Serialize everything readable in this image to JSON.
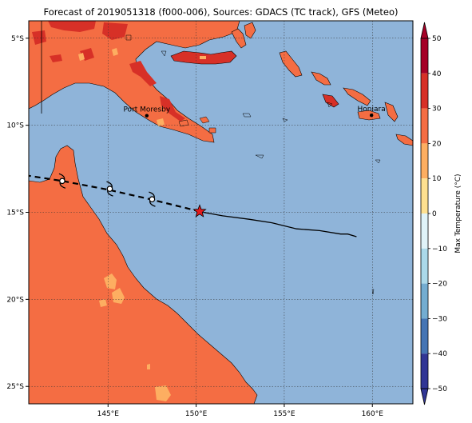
{
  "title": "Forecast of 2019051318 (f000-006), Sources: GDACS (TC track), GFS (Meteo)",
  "map": {
    "lon_range": [
      140.5,
      162.3
    ],
    "lat_range": [
      -26.0,
      -4.0
    ],
    "lon_ticks": [
      {
        "value": 145,
        "label": "145°E"
      },
      {
        "value": 150,
        "label": "150°E"
      },
      {
        "value": 155,
        "label": "155°E"
      },
      {
        "value": 160,
        "label": "160°E"
      }
    ],
    "lat_ticks": [
      {
        "value": -5,
        "label": "5°S"
      },
      {
        "value": -10,
        "label": "10°S"
      },
      {
        "value": -15,
        "label": "15°S"
      },
      {
        "value": -20,
        "label": "20°S"
      },
      {
        "value": -25,
        "label": "25°S"
      }
    ],
    "cities": [
      {
        "name": "Port Moresby",
        "lon": 147.2,
        "lat": -9.45
      },
      {
        "name": "Honiara",
        "lon": 159.95,
        "lat": -9.43
      }
    ],
    "ocean_color": "#8fb4d9",
    "land_color": "#f46d43"
  },
  "track": {
    "past": [
      [
        150.4,
        -15.0
      ],
      [
        151.5,
        -15.2
      ],
      [
        153.0,
        -15.4
      ],
      [
        154.3,
        -15.6
      ],
      [
        155.7,
        -15.95
      ],
      [
        157.0,
        -16.05
      ],
      [
        158.2,
        -16.25
      ],
      [
        158.6,
        -16.25
      ],
      [
        159.1,
        -16.4
      ]
    ],
    "forecast": [
      [
        150.2,
        -14.95
      ],
      [
        147.4,
        -14.25
      ],
      [
        145.0,
        -13.7
      ],
      [
        142.4,
        -13.2
      ],
      [
        140.5,
        -12.9
      ]
    ],
    "current_position": [
      150.2,
      -14.95
    ],
    "forecast_symbols": [
      [
        147.5,
        -14.25
      ],
      [
        145.1,
        -13.65
      ],
      [
        142.4,
        -13.2
      ]
    ]
  },
  "colorbar": {
    "label": "Max Temperature (°C)",
    "ticks": [
      "50",
      "40",
      "30",
      "20",
      "10",
      "0",
      "−10",
      "−20",
      "−30",
      "−40",
      "−50"
    ],
    "colors": [
      "#a50026",
      "#d73027",
      "#f46d43",
      "#fdae61",
      "#fee090",
      "#ffffbf",
      "#e0f3f8",
      "#abd9e9",
      "#74add1",
      "#4575b4",
      "#313695"
    ]
  }
}
